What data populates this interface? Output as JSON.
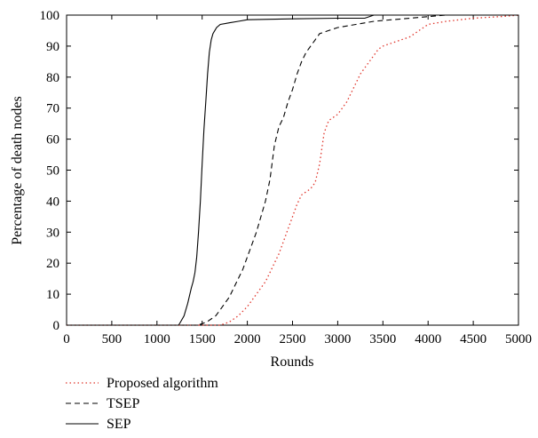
{
  "chart_data": {
    "type": "line",
    "xlabel": "Rounds",
    "ylabel": "Percentage of death nodes",
    "xlim": [
      0,
      5000
    ],
    "ylim": [
      0,
      100
    ],
    "xticks": [
      "0",
      "500",
      "1000",
      "1500",
      "2000",
      "2500",
      "3000",
      "3500",
      "4000",
      "4500",
      "5000"
    ],
    "yticks": [
      "0",
      "10",
      "20",
      "30",
      "40",
      "50",
      "60",
      "70",
      "80",
      "90",
      "100"
    ],
    "grid": false,
    "legend_position": "below plot, left",
    "series": [
      {
        "name": "Proposed algorithm",
        "color": "#e0342a",
        "style": "dotted",
        "x": [
          0,
          1700,
          1750,
          1800,
          1850,
          1900,
          1950,
          2000,
          2050,
          2100,
          2150,
          2200,
          2250,
          2300,
          2350,
          2400,
          2450,
          2500,
          2550,
          2600,
          2650,
          2700,
          2750,
          2800,
          2850,
          2900,
          2950,
          3000,
          3050,
          3100,
          3150,
          3200,
          3250,
          3300,
          3350,
          3400,
          3450,
          3500,
          3600,
          3700,
          3800,
          3900,
          4000,
          4200,
          4500,
          4800,
          5000
        ],
        "y": [
          0,
          0,
          0.5,
          1,
          2,
          3,
          4.5,
          6,
          8,
          10,
          12,
          14,
          17,
          20,
          23,
          27,
          31,
          35,
          39,
          42,
          43,
          44,
          46,
          52,
          62,
          66,
          67,
          68,
          70,
          72,
          75,
          78,
          81,
          83,
          85,
          87,
          89,
          90,
          91,
          92,
          93,
          95,
          97,
          98,
          99,
          99.5,
          100
        ]
      },
      {
        "name": "TSEP",
        "color": "#000000",
        "style": "dashed",
        "x": [
          0,
          1450,
          1500,
          1550,
          1600,
          1650,
          1700,
          1750,
          1800,
          1850,
          1900,
          1950,
          2000,
          2050,
          2100,
          2150,
          2200,
          2250,
          2300,
          2350,
          2400,
          2450,
          2500,
          2550,
          2600,
          2650,
          2700,
          2750,
          2800,
          2900,
          3000,
          3200,
          3400,
          3600,
          3800,
          4000,
          4200,
          5000
        ],
        "y": [
          0,
          0,
          0.5,
          1,
          2,
          3,
          5,
          7,
          9,
          12,
          15,
          18,
          22,
          26,
          30,
          35,
          40,
          47,
          58,
          64,
          67,
          72,
          76,
          81,
          85,
          88,
          90,
          92,
          94,
          95,
          96,
          97,
          98,
          98.5,
          99,
          99.5,
          100,
          100
        ]
      },
      {
        "name": "SEP",
        "color": "#000000",
        "style": "solid",
        "x": [
          0,
          1240,
          1260,
          1300,
          1340,
          1380,
          1400,
          1420,
          1440,
          1460,
          1480,
          1500,
          1520,
          1540,
          1560,
          1580,
          1600,
          1620,
          1660,
          1700,
          1800,
          1900,
          2000,
          2500,
          3000,
          3300,
          3400,
          5000
        ],
        "y": [
          0,
          0,
          1,
          3,
          7,
          12,
          14,
          17,
          22,
          30,
          40,
          52,
          63,
          72,
          81,
          88,
          92,
          94,
          96,
          97,
          97.5,
          98,
          98.5,
          98.8,
          99,
          99,
          100,
          100
        ]
      }
    ]
  }
}
